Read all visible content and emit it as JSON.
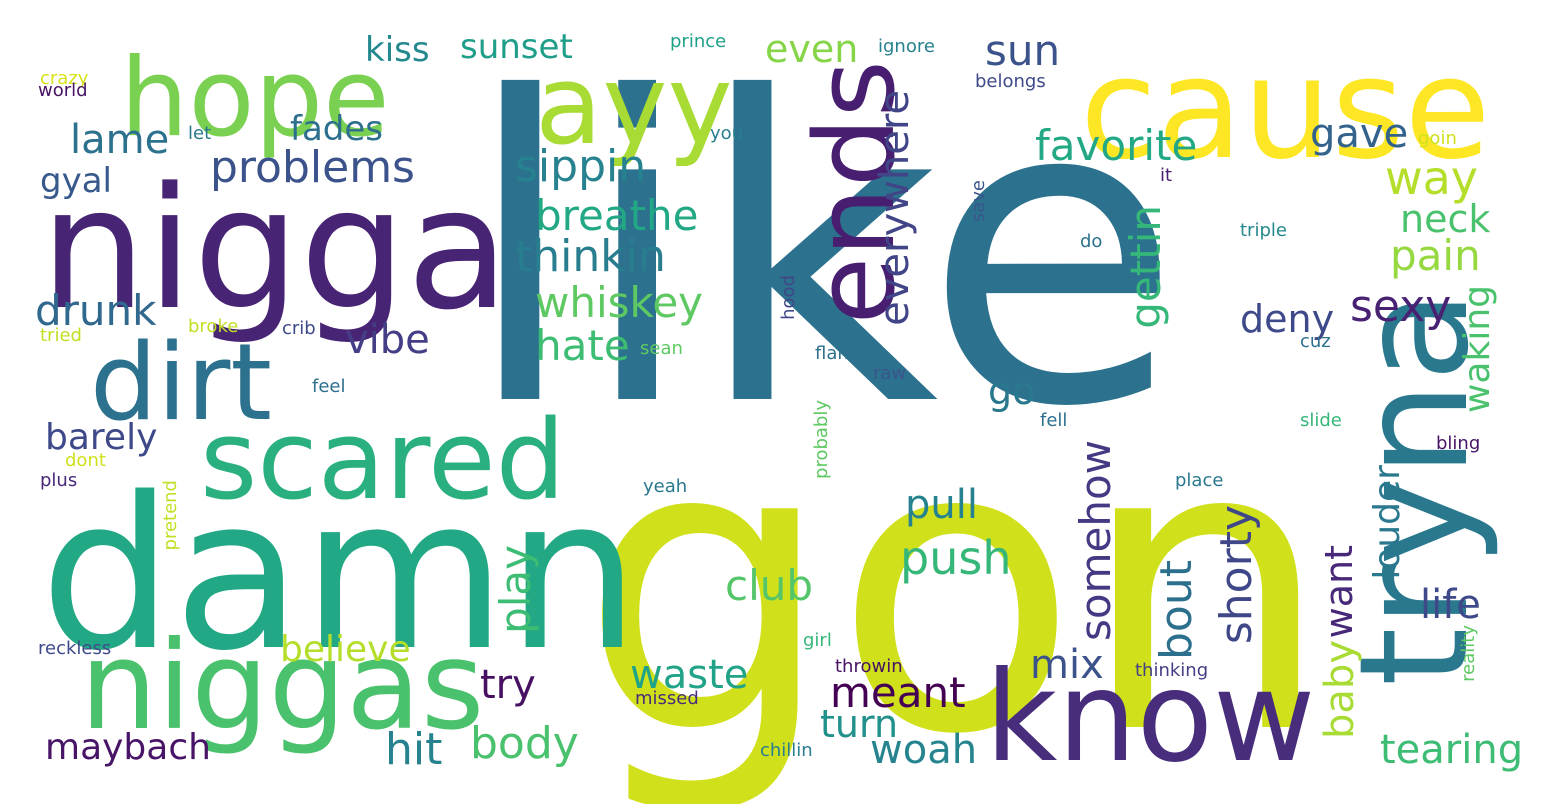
{
  "palette": {
    "purple": "#482475",
    "violet": "#433e85",
    "blue": "#31688e",
    "teal": "#287d8e",
    "cyan": "#1f9e89",
    "green": "#35b779",
    "lightgreen": "#6ece58",
    "lime": "#b5de2b",
    "yellow": "#fde725"
  },
  "words": [
    {
      "text": "like",
      "color": "#2c728e"
    },
    {
      "text": "gon",
      "color": "#d0e11c"
    },
    {
      "text": "cause",
      "color": "#fde725"
    },
    {
      "text": "damn",
      "color": "#22a884"
    },
    {
      "text": "nigga",
      "color": "#482475"
    },
    {
      "text": "niggas",
      "color": "#4ac16d"
    },
    {
      "text": "hope",
      "color": "#7ad151"
    },
    {
      "text": "ayy",
      "color": "#a8db34"
    },
    {
      "text": "know",
      "color": "#472d7b"
    },
    {
      "text": "tryna",
      "color": "#2a788e"
    },
    {
      "text": "ends",
      "color": "#481f70"
    },
    {
      "text": "dirt",
      "color": "#2c728e"
    },
    {
      "text": "scared",
      "color": "#2ab07f"
    },
    {
      "text": "problems",
      "color": "#3b528b"
    },
    {
      "text": "sippin",
      "color": "#26828e"
    },
    {
      "text": "thinkin",
      "color": "#287d8e"
    },
    {
      "text": "breathe",
      "color": "#22a884"
    },
    {
      "text": "whiskey",
      "color": "#5ec962"
    },
    {
      "text": "hate",
      "color": "#3dbc74"
    },
    {
      "text": "drunk",
      "color": "#31688e"
    },
    {
      "text": "vibe",
      "color": "#433e85"
    },
    {
      "text": "lame",
      "color": "#2c728e"
    },
    {
      "text": "fades",
      "color": "#2d708e"
    },
    {
      "text": "gyal",
      "color": "#38598c"
    },
    {
      "text": "kiss",
      "color": "#23898e"
    },
    {
      "text": "sunset",
      "color": "#1f9e89"
    },
    {
      "text": "even",
      "color": "#86d549"
    },
    {
      "text": "sun",
      "color": "#3b528b"
    },
    {
      "text": "everywhere",
      "color": "#414487"
    },
    {
      "text": "favorite",
      "color": "#22a884"
    },
    {
      "text": "gave",
      "color": "#33638d"
    },
    {
      "text": "way",
      "color": "#b5de2b"
    },
    {
      "text": "neck",
      "color": "#4ac16d"
    },
    {
      "text": "pain",
      "color": "#95d840"
    },
    {
      "text": "gettin",
      "color": "#35b779"
    },
    {
      "text": "sexy",
      "color": "#482173"
    },
    {
      "text": "deny",
      "color": "#3e4989"
    },
    {
      "text": "waking",
      "color": "#4ac16d"
    },
    {
      "text": "go",
      "color": "#2a788e"
    },
    {
      "text": "somehow",
      "color": "#443983"
    },
    {
      "text": "pull",
      "color": "#26828e"
    },
    {
      "text": "push",
      "color": "#35b779"
    },
    {
      "text": "club",
      "color": "#54c568"
    },
    {
      "text": "play",
      "color": "#3dbc74"
    },
    {
      "text": "bout",
      "color": "#2d708e"
    },
    {
      "text": "shorty",
      "color": "#3f4788"
    },
    {
      "text": "want",
      "color": "#482878"
    },
    {
      "text": "louder",
      "color": "#2a788e"
    },
    {
      "text": "life",
      "color": "#3e4989"
    },
    {
      "text": "baby",
      "color": "#a8db34"
    },
    {
      "text": "tearing",
      "color": "#3dbc74"
    },
    {
      "text": "barely",
      "color": "#3e4989"
    },
    {
      "text": "believe",
      "color": "#b5de2b"
    },
    {
      "text": "hit",
      "color": "#26828e"
    },
    {
      "text": "body",
      "color": "#4ac16d"
    },
    {
      "text": "try",
      "color": "#471063"
    },
    {
      "text": "maybach",
      "color": "#481467"
    },
    {
      "text": "waste",
      "color": "#20a386"
    },
    {
      "text": "turn",
      "color": "#21918c"
    },
    {
      "text": "meant",
      "color": "#440154"
    },
    {
      "text": "woah",
      "color": "#25848e"
    },
    {
      "text": "mix",
      "color": "#3b528b"
    },
    {
      "text": "crazy",
      "color": "#d8e219"
    },
    {
      "text": "world",
      "color": "#471365"
    },
    {
      "text": "let",
      "color": "#2a788e"
    },
    {
      "text": "you",
      "color": "#287d8e"
    },
    {
      "text": "prince",
      "color": "#1fa188"
    },
    {
      "text": "ignore",
      "color": "#26828e"
    },
    {
      "text": "belongs",
      "color": "#3e4989"
    },
    {
      "text": "goin",
      "color": "#d0e11c"
    },
    {
      "text": "it",
      "color": "#481f70"
    },
    {
      "text": "save",
      "color": "#39568c"
    },
    {
      "text": "do",
      "color": "#2c728e"
    },
    {
      "text": "triple",
      "color": "#23898e"
    },
    {
      "text": "hood",
      "color": "#404688"
    },
    {
      "text": "tried",
      "color": "#c2df23"
    },
    {
      "text": "broke",
      "color": "#c2df23"
    },
    {
      "text": "crib",
      "color": "#3e4989"
    },
    {
      "text": "sean",
      "color": "#5ec962"
    },
    {
      "text": "flames",
      "color": "#2d708e"
    },
    {
      "text": "raw",
      "color": "#39568c"
    },
    {
      "text": "cuz",
      "color": "#2d708e"
    },
    {
      "text": "feel",
      "color": "#2d708e"
    },
    {
      "text": "fell",
      "color": "#2d708e"
    },
    {
      "text": "slide",
      "color": "#35b779"
    },
    {
      "text": "bling",
      "color": "#471365"
    },
    {
      "text": "probably",
      "color": "#5ec962"
    },
    {
      "text": "dont",
      "color": "#d0e11c"
    },
    {
      "text": "plus",
      "color": "#482878"
    },
    {
      "text": "pretend",
      "color": "#c2df23"
    },
    {
      "text": "yeah",
      "color": "#2a788e"
    },
    {
      "text": "place",
      "color": "#2a788e"
    },
    {
      "text": "reckless",
      "color": "#3e4989"
    },
    {
      "text": "girl",
      "color": "#35b779"
    },
    {
      "text": "throwin",
      "color": "#471063"
    },
    {
      "text": "thinking",
      "color": "#433e85"
    },
    {
      "text": "reality",
      "color": "#5ec962"
    },
    {
      "text": "missed",
      "color": "#472c7a"
    },
    {
      "text": "chillin",
      "color": "#287d8e"
    }
  ]
}
